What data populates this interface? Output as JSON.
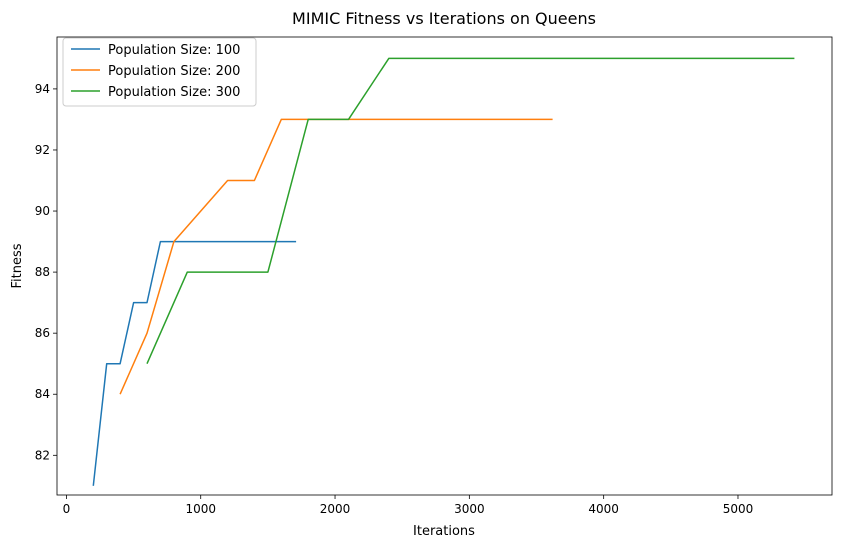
{
  "chart_data": {
    "type": "line",
    "title": "MIMIC Fitness vs Iterations on Queens",
    "xlabel": "Iterations",
    "ylabel": "Fitness",
    "xlim": [
      -70,
      5700
    ],
    "ylim": [
      80.7,
      95.7
    ],
    "xticks": [
      0,
      1000,
      2000,
      3000,
      4000,
      5000
    ],
    "yticks": [
      82,
      84,
      86,
      88,
      90,
      92,
      94
    ],
    "grid": false,
    "legend_position": "top-left",
    "series": [
      {
        "name": "Population Size: 100",
        "color": "#1f77b4",
        "x": [
          200,
          300,
          400,
          500,
          600,
          700,
          1710
        ],
        "y": [
          81,
          85,
          85,
          87,
          87,
          89,
          89
        ]
      },
      {
        "name": "Population Size: 200",
        "color": "#ff7f0e",
        "x": [
          400,
          600,
          800,
          1200,
          1400,
          1600,
          3620
        ],
        "y": [
          84,
          86,
          89,
          91,
          91,
          93,
          93
        ]
      },
      {
        "name": "Population Size: 300",
        "color": "#2ca02c",
        "x": [
          600,
          900,
          1500,
          1800,
          2100,
          2400,
          5420
        ],
        "y": [
          85,
          88,
          88,
          93,
          93,
          95,
          95
        ]
      }
    ]
  }
}
